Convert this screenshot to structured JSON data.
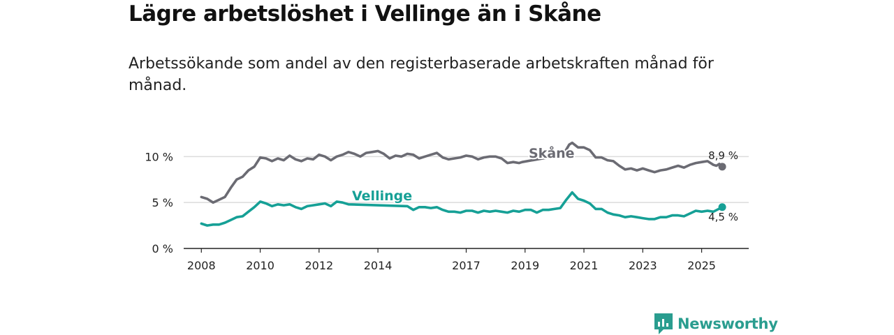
{
  "title": "Lägre arbetslöshet i Vellinge än i Skåne",
  "subtitle": "Arbetssökande som andel av den registerbaserade arbetskraften månad för månad.",
  "brand": {
    "name": "Newsworthy",
    "icon": "newsworthy-logo-icon",
    "color": "#2a9d8f"
  },
  "chart_data": {
    "type": "line",
    "title": "Lägre arbetslöshet i Vellinge än i Skåne",
    "xlabel": "",
    "ylabel": "",
    "ylim": [
      0,
      12
    ],
    "y_ticks": [
      {
        "value": 0,
        "label": "0 %"
      },
      {
        "value": 5,
        "label": "5 %"
      },
      {
        "value": 10,
        "label": "10 %"
      }
    ],
    "x_ticks": [
      {
        "value": 2008,
        "label": "2008"
      },
      {
        "value": 2010,
        "label": "2010"
      },
      {
        "value": 2012,
        "label": "2012"
      },
      {
        "value": 2014,
        "label": "2014"
      },
      {
        "value": 2017,
        "label": "2017"
      },
      {
        "value": 2019,
        "label": "2019"
      },
      {
        "value": 2021,
        "label": "2021"
      },
      {
        "value": 2023,
        "label": "2023"
      },
      {
        "value": 2025,
        "label": "2025"
      }
    ],
    "xlim": [
      2007.4,
      2026.6
    ],
    "grid": true,
    "series": [
      {
        "name": "Skåne",
        "color": "#6b6b73",
        "end_label": "8,9 %",
        "points": [
          [
            2008.0,
            5.6
          ],
          [
            2008.2,
            5.4
          ],
          [
            2008.4,
            5.0
          ],
          [
            2008.6,
            5.3
          ],
          [
            2008.8,
            5.6
          ],
          [
            2009.0,
            6.6
          ],
          [
            2009.2,
            7.5
          ],
          [
            2009.4,
            7.8
          ],
          [
            2009.6,
            8.5
          ],
          [
            2009.8,
            8.9
          ],
          [
            2010.0,
            9.9
          ],
          [
            2010.2,
            9.8
          ],
          [
            2010.4,
            9.5
          ],
          [
            2010.6,
            9.8
          ],
          [
            2010.8,
            9.6
          ],
          [
            2011.0,
            10.1
          ],
          [
            2011.2,
            9.7
          ],
          [
            2011.4,
            9.5
          ],
          [
            2011.6,
            9.8
          ],
          [
            2011.8,
            9.7
          ],
          [
            2012.0,
            10.2
          ],
          [
            2012.2,
            10.0
          ],
          [
            2012.4,
            9.6
          ],
          [
            2012.6,
            10.0
          ],
          [
            2012.8,
            10.2
          ],
          [
            2013.0,
            10.5
          ],
          [
            2013.2,
            10.3
          ],
          [
            2013.4,
            10.0
          ],
          [
            2013.6,
            10.4
          ],
          [
            2013.8,
            10.5
          ],
          [
            2014.0,
            10.6
          ],
          [
            2014.2,
            10.3
          ],
          [
            2014.4,
            9.8
          ],
          [
            2014.6,
            10.1
          ],
          [
            2014.8,
            10.0
          ],
          [
            2015.0,
            10.3
          ],
          [
            2015.2,
            10.2
          ],
          [
            2015.4,
            9.8
          ],
          [
            2015.6,
            10.0
          ],
          [
            2015.8,
            10.2
          ],
          [
            2016.0,
            10.4
          ],
          [
            2016.2,
            9.9
          ],
          [
            2016.4,
            9.7
          ],
          [
            2016.6,
            9.8
          ],
          [
            2016.8,
            9.9
          ],
          [
            2017.0,
            10.1
          ],
          [
            2017.2,
            10.0
          ],
          [
            2017.4,
            9.7
          ],
          [
            2017.6,
            9.9
          ],
          [
            2017.8,
            10.0
          ],
          [
            2018.0,
            10.0
          ],
          [
            2018.2,
            9.8
          ],
          [
            2018.4,
            9.3
          ],
          [
            2018.6,
            9.4
          ],
          [
            2018.8,
            9.3
          ],
          [
            2018.9,
            9.4
          ],
          [
            2020.3,
            10.2
          ],
          [
            2020.5,
            11.3
          ],
          [
            2020.6,
            11.5
          ],
          [
            2020.8,
            11.0
          ],
          [
            2021.0,
            11.0
          ],
          [
            2021.2,
            10.7
          ],
          [
            2021.4,
            9.9
          ],
          [
            2021.6,
            9.9
          ],
          [
            2021.8,
            9.6
          ],
          [
            2022.0,
            9.5
          ],
          [
            2022.2,
            9.0
          ],
          [
            2022.4,
            8.6
          ],
          [
            2022.6,
            8.7
          ],
          [
            2022.8,
            8.5
          ],
          [
            2023.0,
            8.7
          ],
          [
            2023.2,
            8.5
          ],
          [
            2023.4,
            8.3
          ],
          [
            2023.6,
            8.5
          ],
          [
            2023.8,
            8.6
          ],
          [
            2024.0,
            8.8
          ],
          [
            2024.2,
            9.0
          ],
          [
            2024.4,
            8.8
          ],
          [
            2024.6,
            9.1
          ],
          [
            2024.8,
            9.3
          ],
          [
            2025.0,
            9.4
          ],
          [
            2025.2,
            9.5
          ],
          [
            2025.4,
            9.1
          ],
          [
            2025.5,
            9.0
          ],
          [
            2025.6,
            9.2
          ],
          [
            2025.7,
            8.9
          ]
        ]
      },
      {
        "name": "Vellinge",
        "color": "#16a096",
        "end_label": "4,5 %",
        "points": [
          [
            2008.0,
            2.7
          ],
          [
            2008.2,
            2.5
          ],
          [
            2008.4,
            2.6
          ],
          [
            2008.6,
            2.6
          ],
          [
            2008.8,
            2.8
          ],
          [
            2009.0,
            3.1
          ],
          [
            2009.2,
            3.4
          ],
          [
            2009.4,
            3.5
          ],
          [
            2009.6,
            4.0
          ],
          [
            2009.8,
            4.5
          ],
          [
            2010.0,
            5.1
          ],
          [
            2010.2,
            4.9
          ],
          [
            2010.4,
            4.6
          ],
          [
            2010.6,
            4.8
          ],
          [
            2010.8,
            4.7
          ],
          [
            2011.0,
            4.8
          ],
          [
            2011.2,
            4.5
          ],
          [
            2011.4,
            4.3
          ],
          [
            2011.6,
            4.6
          ],
          [
            2011.8,
            4.7
          ],
          [
            2012.0,
            4.8
          ],
          [
            2012.2,
            4.9
          ],
          [
            2012.4,
            4.6
          ],
          [
            2012.6,
            5.1
          ],
          [
            2012.8,
            5.0
          ],
          [
            2013.0,
            4.8
          ],
          [
            2015.0,
            4.6
          ],
          [
            2015.2,
            4.2
          ],
          [
            2015.4,
            4.5
          ],
          [
            2015.6,
            4.5
          ],
          [
            2015.8,
            4.4
          ],
          [
            2016.0,
            4.5
          ],
          [
            2016.2,
            4.2
          ],
          [
            2016.4,
            4.0
          ],
          [
            2016.6,
            4.0
          ],
          [
            2016.8,
            3.9
          ],
          [
            2017.0,
            4.1
          ],
          [
            2017.2,
            4.1
          ],
          [
            2017.4,
            3.9
          ],
          [
            2017.6,
            4.1
          ],
          [
            2017.8,
            4.0
          ],
          [
            2018.0,
            4.1
          ],
          [
            2018.2,
            4.0
          ],
          [
            2018.4,
            3.9
          ],
          [
            2018.6,
            4.1
          ],
          [
            2018.8,
            4.0
          ],
          [
            2019.0,
            4.2
          ],
          [
            2019.2,
            4.2
          ],
          [
            2019.4,
            3.9
          ],
          [
            2019.6,
            4.2
          ],
          [
            2019.8,
            4.2
          ],
          [
            2020.0,
            4.3
          ],
          [
            2020.2,
            4.4
          ],
          [
            2020.4,
            5.3
          ],
          [
            2020.6,
            6.1
          ],
          [
            2020.8,
            5.4
          ],
          [
            2021.0,
            5.2
          ],
          [
            2021.2,
            4.9
          ],
          [
            2021.4,
            4.3
          ],
          [
            2021.6,
            4.3
          ],
          [
            2021.8,
            3.9
          ],
          [
            2022.0,
            3.7
          ],
          [
            2022.2,
            3.6
          ],
          [
            2022.4,
            3.4
          ],
          [
            2022.6,
            3.5
          ],
          [
            2022.8,
            3.4
          ],
          [
            2023.0,
            3.3
          ],
          [
            2023.2,
            3.2
          ],
          [
            2023.4,
            3.2
          ],
          [
            2023.6,
            3.4
          ],
          [
            2023.8,
            3.4
          ],
          [
            2024.0,
            3.6
          ],
          [
            2024.2,
            3.6
          ],
          [
            2024.4,
            3.5
          ],
          [
            2024.6,
            3.8
          ],
          [
            2024.8,
            4.1
          ],
          [
            2025.0,
            4.0
          ],
          [
            2025.2,
            4.1
          ],
          [
            2025.4,
            4.0
          ],
          [
            2025.7,
            4.5
          ]
        ]
      }
    ]
  }
}
